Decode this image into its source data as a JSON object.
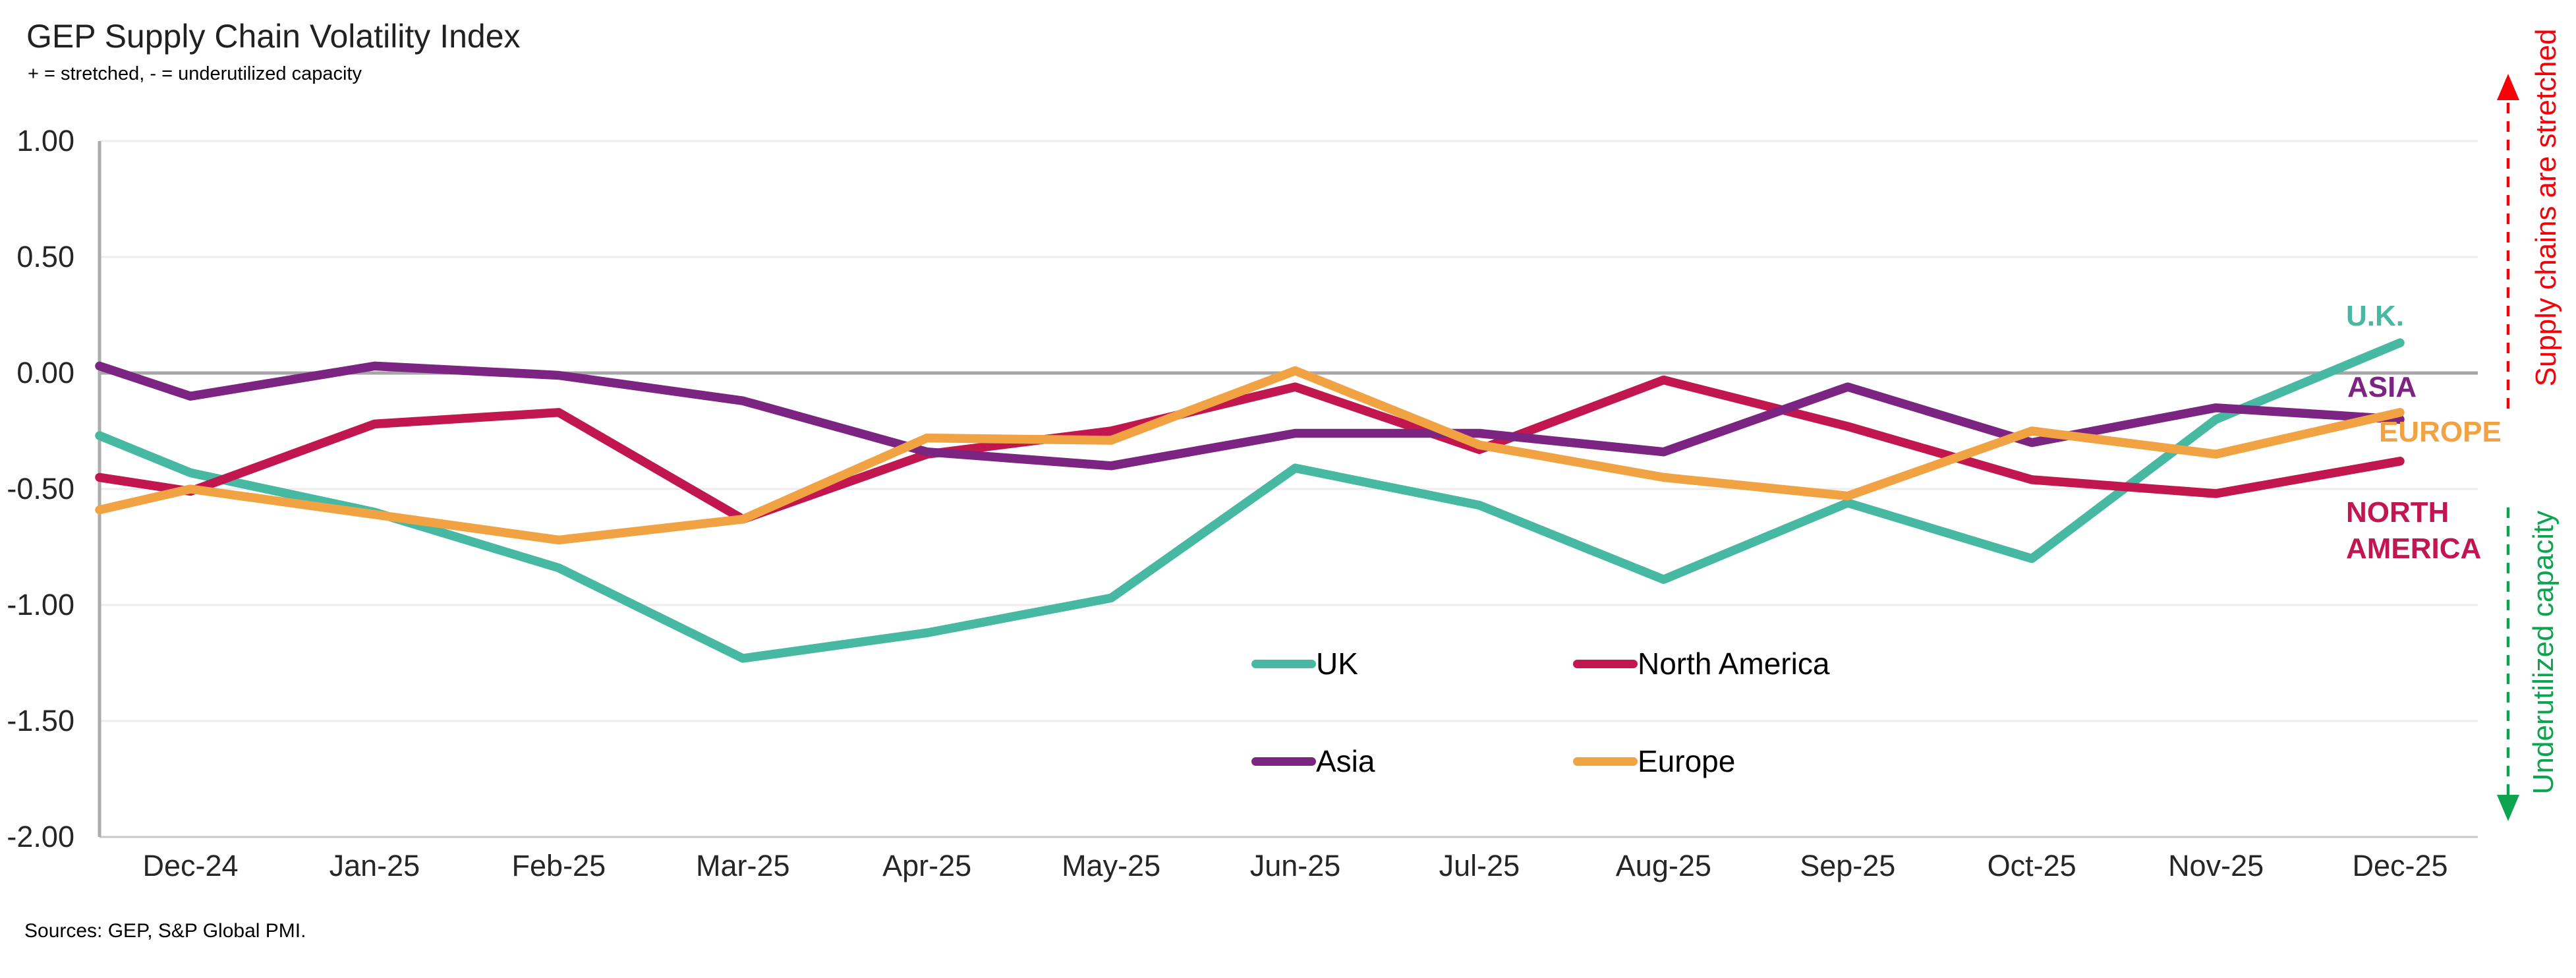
{
  "title": "GEP Supply Chain Volatility Index",
  "subtitle": "+ = stretched, - = underutilized capacity",
  "source_note": "Sources: GEP, S&P Global PMI.",
  "colors": {
    "gridline": "#ECECEC",
    "zero_line": "#A6A6A6",
    "axis_line": "#ADADAD",
    "plot_border": "#C9C9C9",
    "tick_text": "#262626",
    "stretched_red": "#F70008",
    "underutilized_green": "#0DA44F"
  },
  "right_annotations": {
    "top": {
      "label": "Supply chains are stretched",
      "color": "#F70008",
      "arrow": "up-dashed"
    },
    "bottom": {
      "label": "Underutilized capacity",
      "color": "#0DA44F",
      "arrow": "down-dashed"
    }
  },
  "chart_data": {
    "type": "line",
    "title": "GEP Supply Chain Volatility Index",
    "subtitle": "+ = stretched, - = underutilized capacity",
    "grid": true,
    "legend_position": "inside lower-center",
    "y_axis": {
      "ticks": [
        "1.00",
        "0.50",
        "0.00",
        "-0.50",
        "-1.00",
        "-1.50",
        "-2.00"
      ],
      "ylim": [
        -2.0,
        1.0
      ]
    },
    "categories": [
      "Dec-24",
      "Jan-25",
      "Feb-25",
      "Mar-25",
      "Apr-25",
      "May-25",
      "Jun-25",
      "Jul-25",
      "Aug-25",
      "Sep-25",
      "Oct-25",
      "Nov-25",
      "Dec-25"
    ],
    "series": [
      {
        "id": "uk",
        "name": "UK",
        "end_label": "U.K.",
        "color": "#47B8A1",
        "edge_value": -0.27,
        "values": [
          -0.43,
          -0.6,
          -0.84,
          -1.23,
          -1.12,
          -0.97,
          -0.41,
          -0.57,
          -0.89,
          -0.56,
          -0.8,
          -0.2,
          0.13
        ]
      },
      {
        "id": "north-america",
        "name": "North America",
        "end_label": "NORTH AMERICA",
        "color": "#C2164F",
        "edge_value": -0.45,
        "values": [
          -0.51,
          -0.22,
          -0.17,
          -0.63,
          -0.35,
          -0.25,
          -0.06,
          -0.33,
          -0.03,
          -0.23,
          -0.46,
          -0.52,
          -0.38
        ]
      },
      {
        "id": "asia",
        "name": "Asia",
        "end_label": "ASIA",
        "color": "#7B2482",
        "edge_value": 0.03,
        "values": [
          -0.1,
          0.03,
          -0.01,
          -0.12,
          -0.34,
          -0.4,
          -0.26,
          -0.26,
          -0.34,
          -0.06,
          -0.3,
          -0.15,
          -0.2
        ]
      },
      {
        "id": "europe",
        "name": "Europe",
        "end_label": "EUROPE",
        "color": "#F1A343",
        "edge_value": -0.59,
        "values": [
          -0.5,
          -0.61,
          -0.72,
          -0.63,
          -0.28,
          -0.29,
          0.01,
          -0.31,
          -0.45,
          -0.53,
          -0.25,
          -0.35,
          -0.17
        ]
      }
    ]
  }
}
